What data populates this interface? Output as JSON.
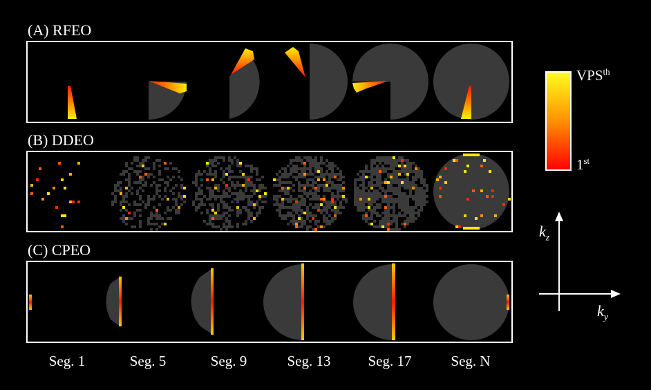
{
  "panels": [
    {
      "id": "A",
      "label": "(A) RFEO"
    },
    {
      "id": "B",
      "label": "(B) DDEO"
    },
    {
      "id": "C",
      "label": "(C) CPEO"
    }
  ],
  "segments": [
    "Seg. 1",
    "Seg. 5",
    "Seg. 9",
    "Seg. 13",
    "Seg. 17",
    "Seg. N"
  ],
  "colorbar": {
    "top_main": "VPS",
    "top_sup": "th",
    "bottom_main": "1",
    "bottom_sup": "st",
    "color_top": "#ffff00",
    "color_bottom": "#ff0000"
  },
  "axes": {
    "vertical_main": "k",
    "vertical_sub": "z",
    "horizontal_main": "k",
    "horizontal_sub": "y"
  },
  "colors": {
    "background": "#000000",
    "disk": "#3a3a3a",
    "border": "#ffffff"
  }
}
